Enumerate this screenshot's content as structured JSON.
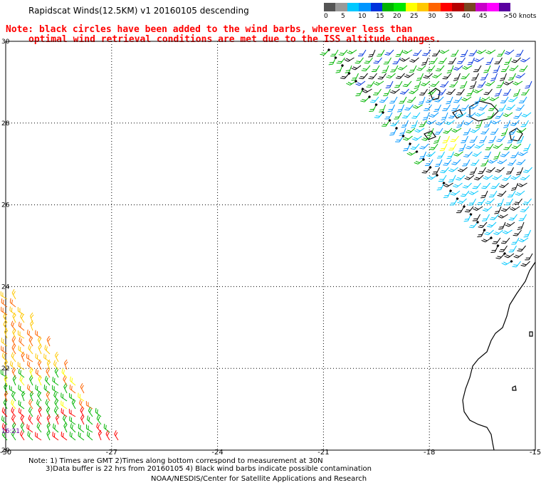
{
  "title": "Rapidscat Winds(12.5KM) v1 20160105 descending",
  "note_red": {
    "line1": "Note: black circles have been added to the wind barbs, wherever less than",
    "line2": "optimal wind retrieval conditions are met due to the ISS altitude changes."
  },
  "color_scale": {
    "labels": [
      "0",
      "5",
      "10",
      "15",
      "20",
      "25",
      "30",
      "35",
      "40",
      "45",
      ">50 knots"
    ],
    "colors": [
      "#555555",
      "#999999",
      "#00c8ff",
      "#0096ff",
      "#0032dc",
      "#00b400",
      "#00e600",
      "#ffff00",
      "#ffc800",
      "#ff6400",
      "#ff0000",
      "#b40000",
      "#784620",
      "#c800c8",
      "#ff00ff",
      "#5a00a0"
    ]
  },
  "axes": {
    "lat_labels": [
      "30",
      "28",
      "26",
      "24",
      "22",
      "20"
    ],
    "lon_labels": [
      "-30",
      "-27",
      "-24",
      "-21",
      "-18",
      "-15"
    ]
  },
  "time_label": "16:21",
  "footer": {
    "line1": "Note: 1) Times are GMT 2)Times along bottom correspond to measurement at 30N",
    "line2": "3)Data buffer is 22 hrs from 20160105 4) Black wind barbs indicate possible contamination",
    "line3": "NOAA/NESDIS/Center for Satellite Applications and Research"
  },
  "map_info": {
    "projection": "lat-lon",
    "lat_range": [
      20,
      30
    ],
    "lon_range": [
      -30,
      -15
    ],
    "grid": true,
    "features": [
      "canary-islands",
      "west-africa-coastline"
    ]
  }
}
